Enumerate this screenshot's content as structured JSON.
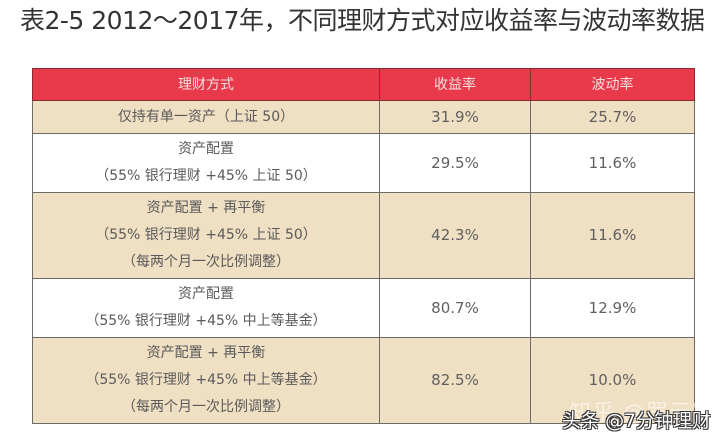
{
  "title": "表2-5 2012～2017年，不同理财方式对应收益率与波动率数据",
  "table": {
    "headers": [
      "理财方式",
      "收益率",
      "波动率"
    ],
    "rows": [
      {
        "method_lines": [
          "仅持有单一资产（上证 50）"
        ],
        "return": "31.9%",
        "volatility": "25.7%"
      },
      {
        "method_lines": [
          "资产配置",
          "（55% 银行理财 +45% 上证 50）"
        ],
        "return": "29.5%",
        "volatility": "11.6%"
      },
      {
        "method_lines": [
          "资产配置 + 再平衡",
          "（55% 银行理财 +45% 上证 50）",
          "（每两个月一次比例调整）"
        ],
        "return": "42.3%",
        "volatility": "11.6%"
      },
      {
        "method_lines": [
          "资产配置",
          "（55% 银行理财 +45% 中上等基金）"
        ],
        "return": "80.7%",
        "volatility": "12.9%"
      },
      {
        "method_lines": [
          "资产配置 + 再平衡",
          "（55% 银行理财 +45% 中上等基金）",
          "（每两个月一次比例调整）"
        ],
        "return": "82.5%",
        "volatility": "10.0%"
      }
    ]
  },
  "watermarks": {
    "faint": "知乎 @罗元宵",
    "main": "头条 @7分钟理财"
  },
  "colors": {
    "header_bg": "#e93a4c",
    "header_text": "#f6dede",
    "row_beige": "#efdfc3",
    "row_white": "#ffffff",
    "border": "#6e6a66"
  }
}
